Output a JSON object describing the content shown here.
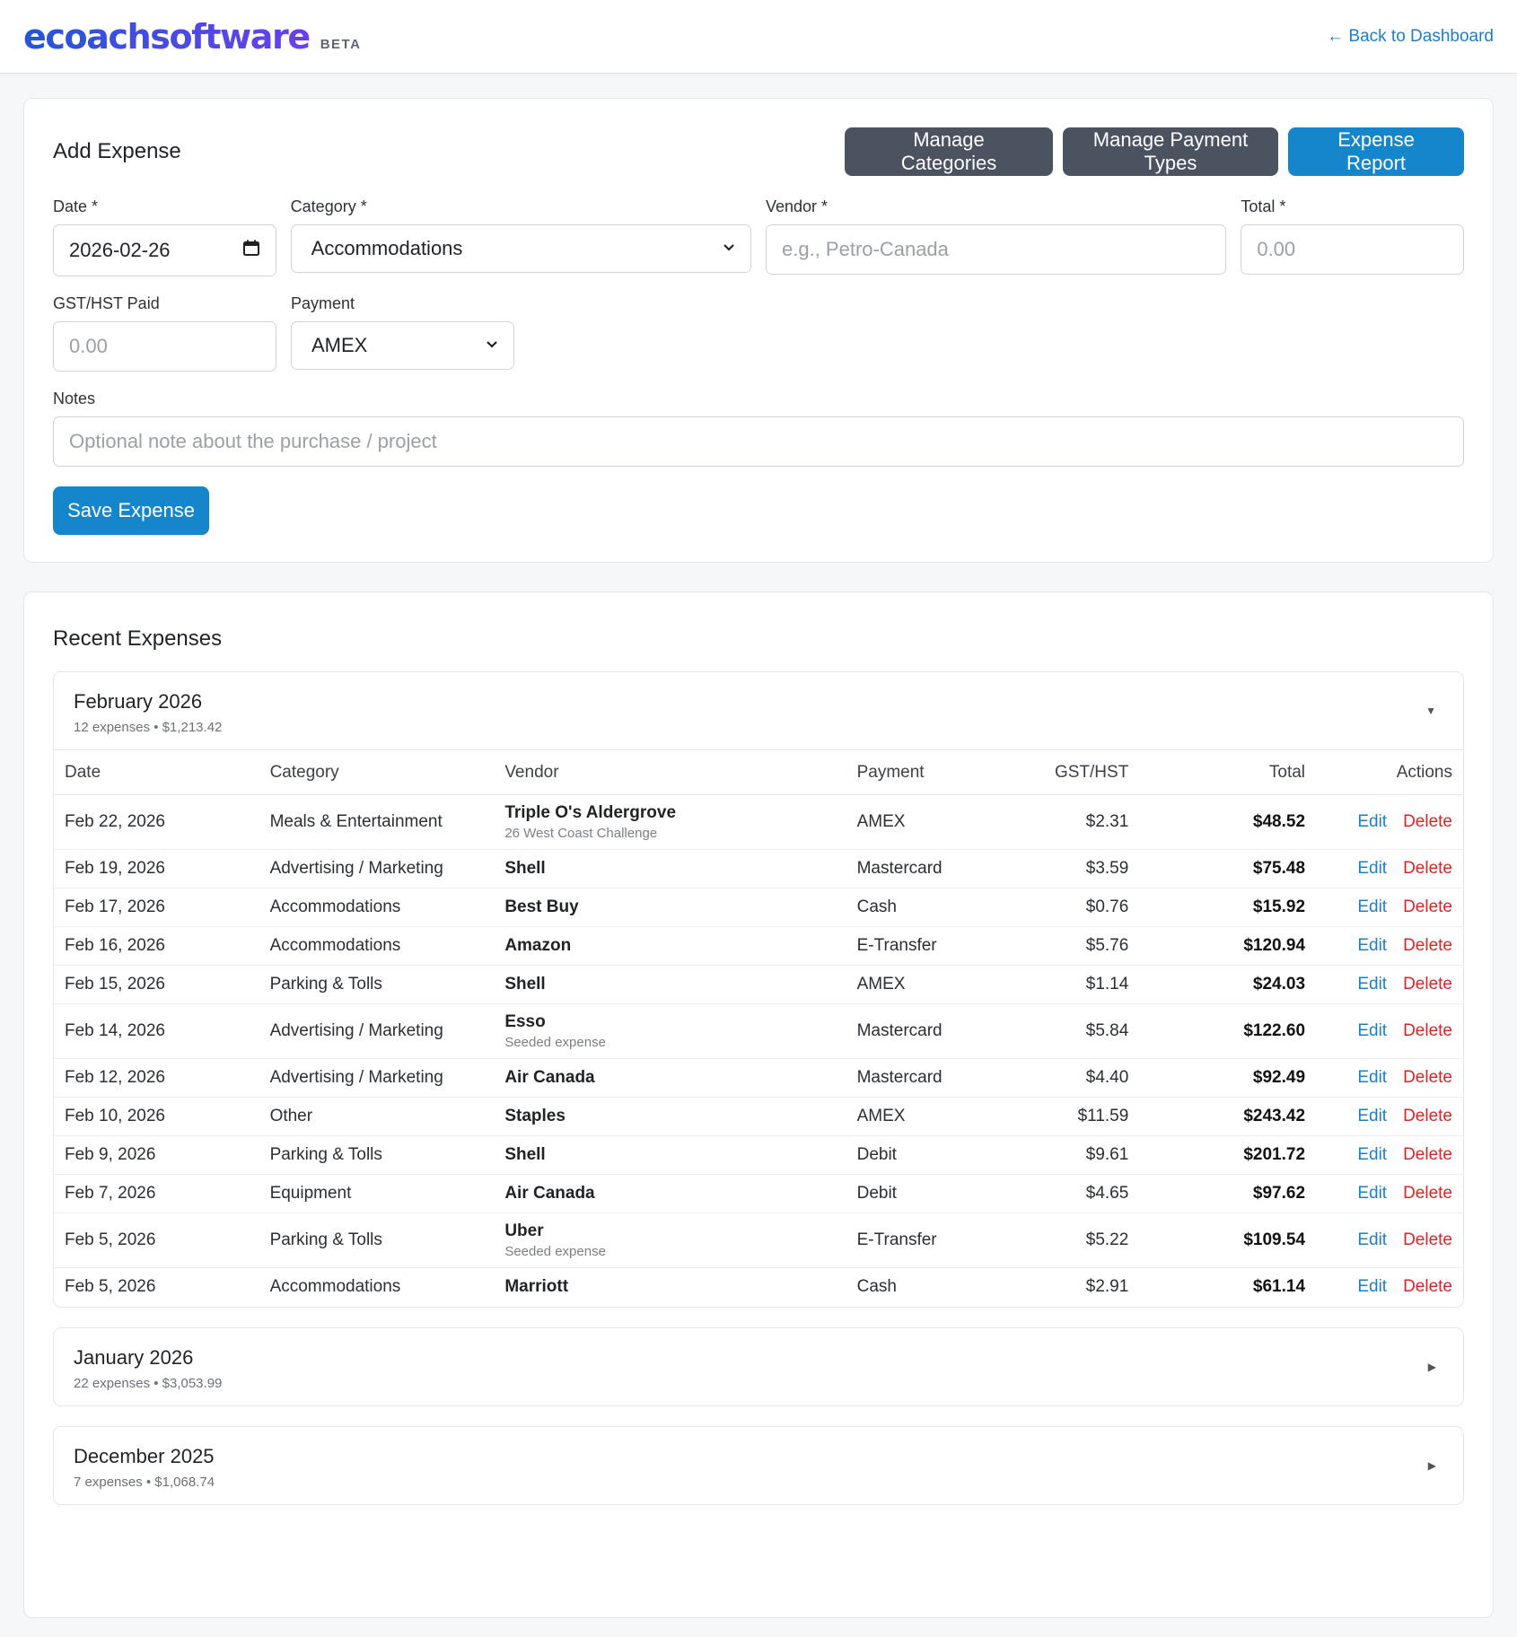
{
  "header": {
    "logo": "ecoachsoftware",
    "badge": "BETA",
    "back_link": "← Back to Dashboard"
  },
  "add_expense": {
    "title": "Add Expense",
    "buttons": {
      "manage_categories": "Manage Categories",
      "manage_payment_types": "Manage Payment Types",
      "expense_report": "Expense Report"
    },
    "fields": {
      "date_label": "Date *",
      "date_value": "2026-02-26",
      "category_label": "Category *",
      "category_value": "Accommodations",
      "vendor_label": "Vendor *",
      "vendor_placeholder": "e.g., Petro-Canada",
      "total_label": "Total *",
      "total_placeholder": "0.00",
      "gst_label": "GST/HST Paid",
      "gst_placeholder": "0.00",
      "payment_label": "Payment",
      "payment_value": "AMEX",
      "notes_label": "Notes",
      "notes_placeholder": "Optional note about the purchase / project"
    },
    "save_label": "Save Expense"
  },
  "recent": {
    "title": "Recent Expenses",
    "columns": [
      "Date",
      "Category",
      "Vendor",
      "Payment",
      "GST/HST",
      "Total",
      "Actions"
    ],
    "edit_label": "Edit",
    "delete_label": "Delete",
    "months": [
      {
        "title": "February 2026",
        "summary": "12 expenses • $1,213.42",
        "expanded": true,
        "rows": [
          {
            "date": "Feb 22, 2026",
            "category": "Meals & Entertainment",
            "vendor": "Triple O's Aldergrove",
            "note": "26 West Coast Challenge",
            "payment": "AMEX",
            "gst": "$2.31",
            "total": "$48.52"
          },
          {
            "date": "Feb 19, 2026",
            "category": "Advertising / Marketing",
            "vendor": "Shell",
            "note": "",
            "payment": "Mastercard",
            "gst": "$3.59",
            "total": "$75.48"
          },
          {
            "date": "Feb 17, 2026",
            "category": "Accommodations",
            "vendor": "Best Buy",
            "note": "",
            "payment": "Cash",
            "gst": "$0.76",
            "total": "$15.92"
          },
          {
            "date": "Feb 16, 2026",
            "category": "Accommodations",
            "vendor": "Amazon",
            "note": "",
            "payment": "E-Transfer",
            "gst": "$5.76",
            "total": "$120.94"
          },
          {
            "date": "Feb 15, 2026",
            "category": "Parking & Tolls",
            "vendor": "Shell",
            "note": "",
            "payment": "AMEX",
            "gst": "$1.14",
            "total": "$24.03"
          },
          {
            "date": "Feb 14, 2026",
            "category": "Advertising / Marketing",
            "vendor": "Esso",
            "note": "Seeded expense",
            "payment": "Mastercard",
            "gst": "$5.84",
            "total": "$122.60"
          },
          {
            "date": "Feb 12, 2026",
            "category": "Advertising / Marketing",
            "vendor": "Air Canada",
            "note": "",
            "payment": "Mastercard",
            "gst": "$4.40",
            "total": "$92.49"
          },
          {
            "date": "Feb 10, 2026",
            "category": "Other",
            "vendor": "Staples",
            "note": "",
            "payment": "AMEX",
            "gst": "$11.59",
            "total": "$243.42"
          },
          {
            "date": "Feb 9, 2026",
            "category": "Parking & Tolls",
            "vendor": "Shell",
            "note": "",
            "payment": "Debit",
            "gst": "$9.61",
            "total": "$201.72"
          },
          {
            "date": "Feb 7, 2026",
            "category": "Equipment",
            "vendor": "Air Canada",
            "note": "",
            "payment": "Debit",
            "gst": "$4.65",
            "total": "$97.62"
          },
          {
            "date": "Feb 5, 2026",
            "category": "Parking & Tolls",
            "vendor": "Uber",
            "note": "Seeded expense",
            "payment": "E-Transfer",
            "gst": "$5.22",
            "total": "$109.54"
          },
          {
            "date": "Feb 5, 2026",
            "category": "Accommodations",
            "vendor": "Marriott",
            "note": "",
            "payment": "Cash",
            "gst": "$2.91",
            "total": "$61.14"
          }
        ]
      },
      {
        "title": "January 2026",
        "summary": "22 expenses • $3,053.99",
        "expanded": false
      },
      {
        "title": "December 2025",
        "summary": "7 expenses • $1,068.74",
        "expanded": false
      }
    ]
  }
}
